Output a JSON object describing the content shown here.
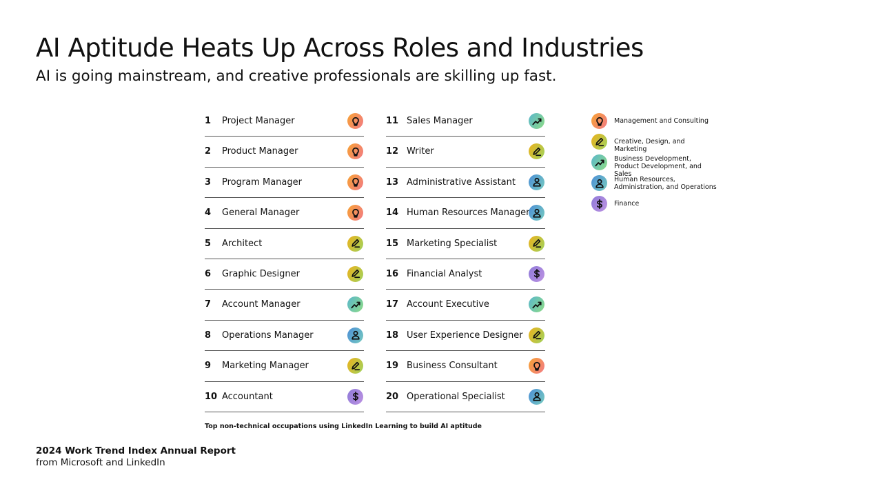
{
  "title": "AI Aptitude Heats Up Across Roles and Industries",
  "subtitle": "AI is going mainstream, and creative professionals are skilling up fast.",
  "categories": {
    "mgmt": {
      "label": "Management and Consulting",
      "icon": "lightbulb-icon",
      "colors": [
        "#f7a233",
        "#f27b86"
      ]
    },
    "creative": {
      "label": "Creative, Design, and Marketing",
      "icon": "pen-icon",
      "colors": [
        "#ecb11c",
        "#9fd35e"
      ]
    },
    "bizdev": {
      "label": "Business Development, Product Development, and Sales",
      "icon": "trend-up-icon",
      "colors": [
        "#5ab7cc",
        "#8edb86"
      ]
    },
    "hr": {
      "label": "Human Resources, Administration, and Operations",
      "icon": "person-icon",
      "colors": [
        "#4c8ed6",
        "#76cbc0"
      ]
    },
    "finance": {
      "label": "Finance",
      "icon": "dollar-icon",
      "colors": [
        "#8f7ad8",
        "#bc92e2"
      ]
    }
  },
  "legend_order": [
    "mgmt",
    "creative",
    "bizdev",
    "hr",
    "finance"
  ],
  "roles": [
    {
      "rank": "1",
      "name": "Project Manager",
      "cat": "mgmt"
    },
    {
      "rank": "2",
      "name": "Product Manager",
      "cat": "mgmt"
    },
    {
      "rank": "3",
      "name": "Program Manager",
      "cat": "mgmt"
    },
    {
      "rank": "4",
      "name": "General Manager",
      "cat": "mgmt"
    },
    {
      "rank": "5",
      "name": "Architect",
      "cat": "creative"
    },
    {
      "rank": "6",
      "name": "Graphic Designer",
      "cat": "creative"
    },
    {
      "rank": "7",
      "name": "Account Manager",
      "cat": "bizdev"
    },
    {
      "rank": "8",
      "name": "Operations Manager",
      "cat": "hr"
    },
    {
      "rank": "9",
      "name": "Marketing Manager",
      "cat": "creative"
    },
    {
      "rank": "10",
      "name": "Accountant",
      "cat": "finance"
    },
    {
      "rank": "11",
      "name": "Sales Manager",
      "cat": "bizdev"
    },
    {
      "rank": "12",
      "name": "Writer",
      "cat": "creative"
    },
    {
      "rank": "13",
      "name": "Administrative Assistant",
      "cat": "hr"
    },
    {
      "rank": "14",
      "name": "Human Resources Manager",
      "cat": "hr"
    },
    {
      "rank": "15",
      "name": "Marketing Specialist",
      "cat": "creative"
    },
    {
      "rank": "16",
      "name": "Financial Analyst",
      "cat": "finance"
    },
    {
      "rank": "17",
      "name": "Account Executive",
      "cat": "bizdev"
    },
    {
      "rank": "18",
      "name": "User Experience Designer",
      "cat": "creative"
    },
    {
      "rank": "19",
      "name": "Business Consultant",
      "cat": "mgmt"
    },
    {
      "rank": "20",
      "name": "Operational Specialist",
      "cat": "hr"
    }
  ],
  "caption": "Top non-technical occupations using LinkedIn Learning to build AI aptitude",
  "source_title": "2024 Work Trend Index Annual Report",
  "source_sub": "from Microsoft and LinkedIn"
}
